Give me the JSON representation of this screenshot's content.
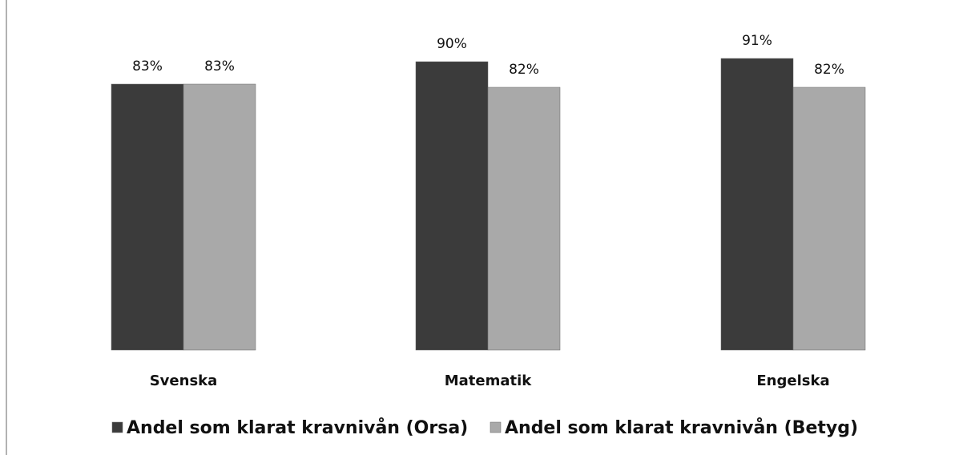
{
  "chart_data": {
    "type": "bar",
    "categories": [
      "Svenska",
      "Matematik",
      "Engelska"
    ],
    "series": [
      {
        "name": "Andel som klarat kravnivån (Orsa)",
        "color": "#3b3b3b",
        "values": [
          83,
          90,
          91
        ],
        "value_labels": [
          "83%",
          "90%",
          "91%"
        ]
      },
      {
        "name": "Andel som klarat kravnivån (Betyg)",
        "color": "#a9a9a9",
        "values": [
          83,
          82,
          82
        ],
        "value_labels": [
          "83%",
          "82%",
          "82%"
        ]
      }
    ],
    "ylim": [
      0,
      100
    ]
  }
}
